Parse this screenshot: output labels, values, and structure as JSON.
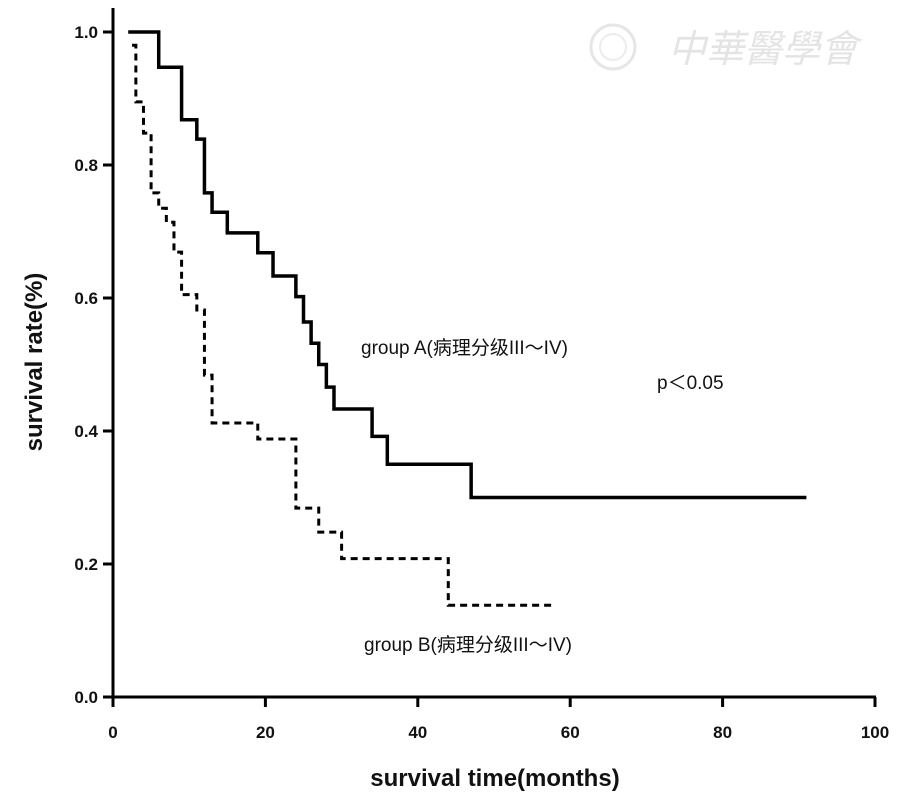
{
  "watermark": {
    "text": "中華醫學會",
    "color": "#e4e4e4"
  },
  "chart_data": {
    "type": "line",
    "subtype": "kaplan-meier step",
    "title": "",
    "xlabel": "survival time(months)",
    "ylabel": "survival rate(%)",
    "xlim": [
      0,
      100
    ],
    "ylim": [
      0,
      1.0
    ],
    "xticks": [
      0,
      20,
      40,
      60,
      80,
      100
    ],
    "xtick_labels": [
      "0",
      "20",
      "40",
      "60",
      "80",
      "100"
    ],
    "yticks": [
      0,
      0.2,
      0.4,
      0.6,
      0.8,
      1.0
    ],
    "ytick_labels": [
      "0.0",
      "0.2",
      "0.4",
      "0.6",
      "0.8",
      "1.0"
    ],
    "grid": false,
    "series": [
      {
        "name": "group A(病理分级III～IV)",
        "style": "solid",
        "color": "#000000",
        "times": [
          2,
          6,
          9,
          11,
          12,
          13,
          15,
          19,
          21,
          24,
          25,
          26,
          27,
          28,
          29,
          34,
          36,
          47
        ],
        "survival": [
          1.0,
          0.947,
          0.868,
          0.839,
          0.758,
          0.729,
          0.698,
          0.668,
          0.633,
          0.602,
          0.564,
          0.532,
          0.5,
          0.466,
          0.433,
          0.392,
          0.35,
          0.3
        ],
        "end_time": 91
      },
      {
        "name": "group B(病理分级III～IV)",
        "style": "dashed",
        "color": "#000000",
        "times": [
          2.5,
          3,
          4,
          5,
          6,
          7,
          8,
          9,
          11,
          12,
          13,
          19,
          24,
          27,
          30,
          44
        ],
        "survival": [
          0.98,
          0.895,
          0.848,
          0.758,
          0.735,
          0.714,
          0.669,
          0.605,
          0.582,
          0.484,
          0.412,
          0.388,
          0.284,
          0.248,
          0.208,
          0.138
        ],
        "end_time": 58
      }
    ],
    "annotations": [
      {
        "text": "group A(病理分级III～IV)"
      },
      {
        "text": "p＜0.05"
      },
      {
        "text": "group B(病理分级III～IV)"
      }
    ]
  }
}
